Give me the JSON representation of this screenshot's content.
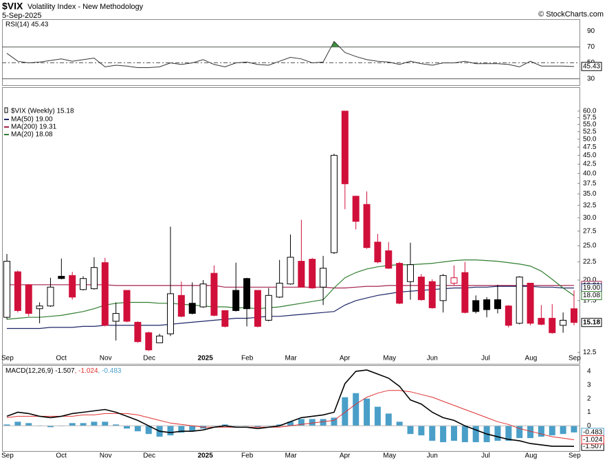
{
  "header": {
    "symbol": "$VIX",
    "name": "Volatility Index - New Methodology",
    "date": "5-Sep-2025",
    "credit": "© StockCharts.com"
  },
  "chart_data": [
    {
      "type": "rsi",
      "label": "RSI(14) 45.43",
      "color": "#333333",
      "overbought_color": "#3f8f3f",
      "values": [
        62,
        52,
        50,
        51,
        53,
        55,
        52,
        54,
        56,
        45,
        47,
        46,
        44,
        44,
        45,
        50,
        48,
        50,
        54,
        48,
        45,
        50,
        51,
        48,
        47,
        52,
        57,
        55,
        50,
        51,
        77,
        63,
        58,
        54,
        52,
        51,
        48,
        52,
        49,
        47,
        50,
        50,
        52,
        49,
        49,
        49,
        48,
        45,
        52,
        46,
        46,
        46,
        45.43
      ],
      "ylim": [
        22,
        104
      ],
      "yticks": [
        90,
        70,
        50,
        30
      ],
      "thresholds": [
        70,
        30
      ],
      "midline": 50
    },
    {
      "type": "candlestick",
      "legend_title": "$VIX (Weekly) 15.18",
      "log_scale": true,
      "up_color": "#000000",
      "down_color": "#d0103a",
      "categories": [
        "Sep",
        null,
        null,
        null,
        null,
        "Oct",
        null,
        null,
        null,
        "Nov",
        null,
        null,
        null,
        "Dec",
        null,
        null,
        null,
        null,
        "2025",
        null,
        null,
        null,
        "Feb",
        null,
        null,
        null,
        "Mar",
        null,
        null,
        null,
        null,
        "Apr",
        null,
        null,
        null,
        "May",
        null,
        null,
        null,
        "Jun",
        null,
        null,
        null,
        null,
        "Jul",
        null,
        null,
        null,
        "Aug",
        null,
        null,
        null,
        "Sep"
      ],
      "open": [
        15.7,
        21.1,
        19.4,
        16.6,
        16.9,
        20.5,
        20.6,
        18.8,
        18.9,
        22.4,
        15.3,
        18.7,
        15.2,
        14.2,
        13.3,
        14.1,
        18.1,
        17.2,
        16.8,
        20.9,
        16.4,
        18.7,
        20.2,
        18.7,
        15.4,
        17.9,
        19.5,
        22.6,
        22.9,
        19.1,
        23.9,
        60.0,
        34.5,
        32.7,
        25.6,
        24.2,
        22.3,
        19.8,
        20.4,
        19.8,
        17.5,
        19.6,
        21.0,
        17.5,
        17.6,
        17.6,
        16.9,
        15.1,
        19.6,
        15.6,
        15.6,
        14.9,
        16.6
      ],
      "high": [
        23.7,
        21.3,
        19.5,
        17.3,
        20.3,
        23.0,
        21.1,
        20.5,
        23.2,
        23.1,
        17.3,
        18.7,
        15.3,
        14.3,
        14.1,
        28.3,
        19.8,
        19.7,
        20.0,
        22.0,
        16.4,
        22.4,
        20.3,
        18.7,
        19.0,
        22.8,
        26.9,
        29.6,
        23.1,
        23.4,
        45.5,
        60.1,
        34.6,
        35.6,
        27.0,
        25.6,
        22.5,
        25.5,
        20.8,
        20.1,
        20.8,
        22.0,
        22.5,
        18.1,
        17.9,
        19.4,
        17.0,
        20.5,
        19.6,
        17.0,
        17.1,
        16.2,
        18.7
      ],
      "low": [
        15.5,
        16.2,
        15.8,
        15.1,
        16.8,
        20.1,
        17.6,
        18.7,
        18.8,
        14.8,
        13.5,
        15.2,
        13.3,
        12.6,
        13.3,
        13.9,
        15.7,
        16.0,
        16.7,
        15.8,
        14.7,
        16.3,
        14.8,
        14.7,
        15.3,
        17.8,
        19.4,
        19.1,
        18.9,
        17.0,
        23.7,
        31.7,
        27.8,
        24.5,
        22.3,
        21.5,
        17.1,
        17.6,
        17.5,
        16.6,
        16.2,
        19.3,
        16.1,
        16.1,
        15.7,
        16.1,
        14.7,
        15.0,
        14.9,
        14.9,
        14.1,
        14.2,
        14.9
      ],
      "close": [
        22.6,
        16.4,
        16.1,
        16.9,
        19.1,
        20.2,
        17.9,
        20.2,
        21.7,
        14.9,
        16.1,
        15.3,
        13.4,
        12.7,
        13.9,
        18.3,
        15.8,
        16.1,
        19.5,
        15.9,
        14.8,
        16.4,
        16.6,
        14.8,
        18.1,
        19.6,
        23.2,
        19.1,
        19.0,
        21.6,
        45.0,
        37.4,
        29.3,
        24.7,
        22.5,
        21.6,
        17.2,
        22.1,
        17.6,
        16.7,
        20.6,
        20.3,
        16.2,
        16.3,
        16.5,
        16.6,
        14.9,
        20.4,
        15.1,
        15.0,
        14.2,
        15.4,
        15.18
      ],
      "series": [
        {
          "name": "MA(200) 19.31",
          "color": "#a3214d",
          "values": [
            19.4,
            19.4,
            19.4,
            19.4,
            19.4,
            19.4,
            19.4,
            19.4,
            19.4,
            19.4,
            19.3,
            19.3,
            19.3,
            19.3,
            19.3,
            19.3,
            19.3,
            19.3,
            19.3,
            19.3,
            19.1,
            19.1,
            19.1,
            19.1,
            19.1,
            19.1,
            19.1,
            19.1,
            19.1,
            19.1,
            19.0,
            19.0,
            19.1,
            19.2,
            19.2,
            19.3,
            19.3,
            19.3,
            19.3,
            19.3,
            19.3,
            19.3,
            19.3,
            19.3,
            19.3,
            19.3,
            19.3,
            19.3,
            19.3,
            19.3,
            19.3,
            19.3,
            19.31
          ]
        },
        {
          "name": "MA(50) 19.00",
          "color": "#1c2466",
          "values": [
            14.6,
            14.6,
            14.6,
            14.6,
            14.7,
            14.7,
            14.7,
            14.8,
            14.8,
            14.9,
            14.9,
            14.9,
            14.9,
            14.9,
            14.9,
            15.0,
            15.1,
            15.2,
            15.3,
            15.4,
            15.5,
            15.6,
            15.6,
            15.7,
            15.8,
            15.8,
            15.9,
            16.0,
            16.1,
            16.2,
            16.3,
            17.0,
            17.5,
            17.8,
            18.1,
            18.3,
            18.5,
            18.6,
            18.7,
            18.8,
            18.9,
            19.0,
            19.0,
            19.1,
            19.1,
            19.2,
            19.2,
            19.2,
            19.2,
            19.1,
            19.1,
            19.0,
            19
          ],
          "value_labels": [
            null,
            null,
            null,
            null,
            null,
            null,
            null,
            null,
            null,
            null,
            null,
            null,
            null,
            null,
            null,
            null,
            null,
            null,
            null,
            null,
            null,
            null,
            null,
            null,
            null,
            null,
            null,
            null,
            null,
            null,
            null,
            null,
            null,
            null,
            null,
            null,
            null,
            null,
            null,
            null,
            null,
            null,
            null,
            null,
            null,
            null,
            null,
            null,
            null,
            null,
            null,
            null,
            "19.00"
          ]
        },
        {
          "name": "MA(20) 18.08",
          "color": "#2f7d2f",
          "values": [
            15.5,
            15.6,
            15.7,
            15.7,
            15.8,
            15.9,
            16.1,
            16.3,
            16.6,
            17.0,
            17.2,
            17.3,
            17.3,
            17.3,
            17.2,
            17.2,
            17.1,
            17.0,
            16.9,
            16.8,
            16.8,
            16.7,
            16.7,
            16.6,
            16.7,
            16.8,
            17.0,
            17.2,
            17.4,
            17.6,
            19.0,
            20.3,
            21.0,
            21.5,
            21.8,
            22.0,
            22.1,
            22.1,
            22.2,
            22.3,
            22.5,
            22.7,
            22.8,
            22.8,
            22.7,
            22.6,
            22.4,
            22.2,
            21.9,
            21.2,
            20.1,
            19.0,
            18.08
          ]
        }
      ],
      "ylim": [
        11.6,
        70.1
      ],
      "yticks": [
        {
          "value": 60,
          "label": "60.0"
        },
        {
          "value": 57.5,
          "label": "57.5"
        },
        {
          "value": 55,
          "label": "55.0"
        },
        {
          "value": 52.5,
          "label": "52.5"
        },
        {
          "value": 50,
          "label": "50.0"
        },
        {
          "value": 47.5,
          "label": "47.5"
        },
        {
          "value": 45,
          "label": "45.0"
        },
        {
          "value": 42.5,
          "label": "42.5"
        },
        {
          "value": 40,
          "label": "40.0"
        },
        {
          "value": 37.5,
          "label": "37.5"
        },
        {
          "value": 35,
          "label": "35.0"
        },
        {
          "value": 32.5,
          "label": "32.5"
        },
        {
          "value": 30,
          "label": "30.0"
        },
        {
          "value": 27.5,
          "label": "27.5"
        },
        {
          "value": 25,
          "label": "25.0"
        },
        {
          "value": 22.5,
          "label": "22.5"
        },
        {
          "value": 20,
          "label": "20.0"
        },
        {
          "value": 17.5,
          "label": "17.5"
        },
        {
          "value": 12.5,
          "label": "12.5"
        }
      ]
    },
    {
      "type": "macd",
      "label_parts": [
        "MACD(12,26,9) -1.507",
        ", -1.024",
        ", -0.483"
      ],
      "series": [
        {
          "color": "#000000",
          "values": [
            0.7,
            1.0,
            0.9,
            0.7,
            0.6,
            0.7,
            0.9,
            1.0,
            1.1,
            1.2,
            1.0,
            0.7,
            0.4,
            0.0,
            -0.4,
            -0.5,
            -0.4,
            -0.4,
            -0.3,
            -0.1,
            0.0,
            -0.1,
            -0.1,
            -0.2,
            -0.1,
            0.0,
            0.3,
            0.6,
            0.7,
            0.8,
            1.0,
            3.1,
            4.0,
            4.1,
            3.8,
            3.5,
            2.9,
            1.9,
            1.6,
            1.0,
            0.6,
            0.4,
            0.0,
            -0.3,
            -0.6,
            -0.8,
            -1.0,
            -1.1,
            -1.3,
            -1.4,
            -1.5,
            -1.5,
            -1.507
          ]
        },
        {
          "color": "#e03030",
          "values": [
            0.6,
            0.7,
            0.7,
            0.7,
            0.7,
            0.7,
            0.7,
            0.8,
            0.8,
            0.9,
            0.9,
            0.9,
            0.8,
            0.6,
            0.4,
            0.2,
            0.1,
            0.0,
            -0.1,
            -0.1,
            -0.1,
            -0.1,
            -0.1,
            -0.1,
            -0.1,
            -0.1,
            0.0,
            0.1,
            0.2,
            0.3,
            0.4,
            1.0,
            1.6,
            2.1,
            2.4,
            2.6,
            2.6,
            2.5,
            2.3,
            2.1,
            1.8,
            1.5,
            1.2,
            0.9,
            0.6,
            0.3,
            0.1,
            -0.2,
            -0.4,
            -0.6,
            -0.8,
            -0.9,
            -1.024
          ]
        }
      ],
      "histogram": {
        "color": "#4a9fc8",
        "values": [
          0.1,
          0.3,
          0.2,
          0.0,
          -0.1,
          0.0,
          0.2,
          0.2,
          0.3,
          0.3,
          0.1,
          -0.2,
          -0.4,
          -0.6,
          -0.8,
          -0.7,
          -0.5,
          -0.4,
          -0.2,
          0.0,
          0.1,
          0.0,
          0.0,
          -0.1,
          0.0,
          0.1,
          0.3,
          0.5,
          0.5,
          0.5,
          0.6,
          2.1,
          2.4,
          2.0,
          1.4,
          0.9,
          0.3,
          -0.6,
          -0.7,
          -1.1,
          -1.2,
          -1.1,
          -1.2,
          -1.2,
          -1.2,
          -1.1,
          -1.1,
          -0.9,
          -0.9,
          -0.8,
          -0.7,
          -0.6,
          -0.483
        ]
      },
      "ylim": [
        -1.9,
        4.4
      ],
      "yticks": [
        4,
        3,
        2,
        1,
        0
      ]
    }
  ]
}
